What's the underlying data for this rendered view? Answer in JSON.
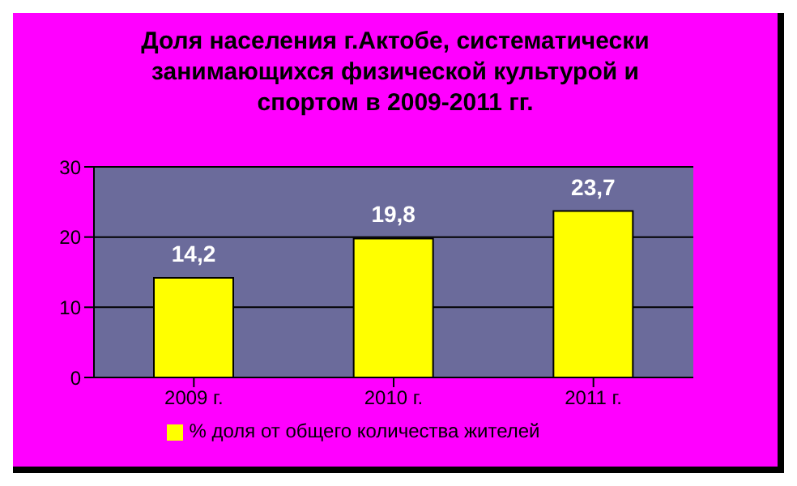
{
  "chart_data": {
    "type": "bar",
    "title": "Доля населения г.Актобе, систематически занимающихся физической культурой и спортом в 2009-2011 гг.",
    "categories": [
      "2009 г.",
      "2010 г.",
      "2011 г."
    ],
    "series": [
      {
        "name": "% доля от общего количества жителей",
        "color": "#ffff00",
        "values": [
          14.2,
          19.8,
          23.7
        ],
        "value_labels": [
          "14,2",
          "19,8",
          "23,7"
        ]
      }
    ],
    "ylim": [
      0,
      30
    ],
    "yticks": [
      0,
      10,
      20,
      30
    ],
    "grid": "y",
    "legend": "bottom"
  }
}
